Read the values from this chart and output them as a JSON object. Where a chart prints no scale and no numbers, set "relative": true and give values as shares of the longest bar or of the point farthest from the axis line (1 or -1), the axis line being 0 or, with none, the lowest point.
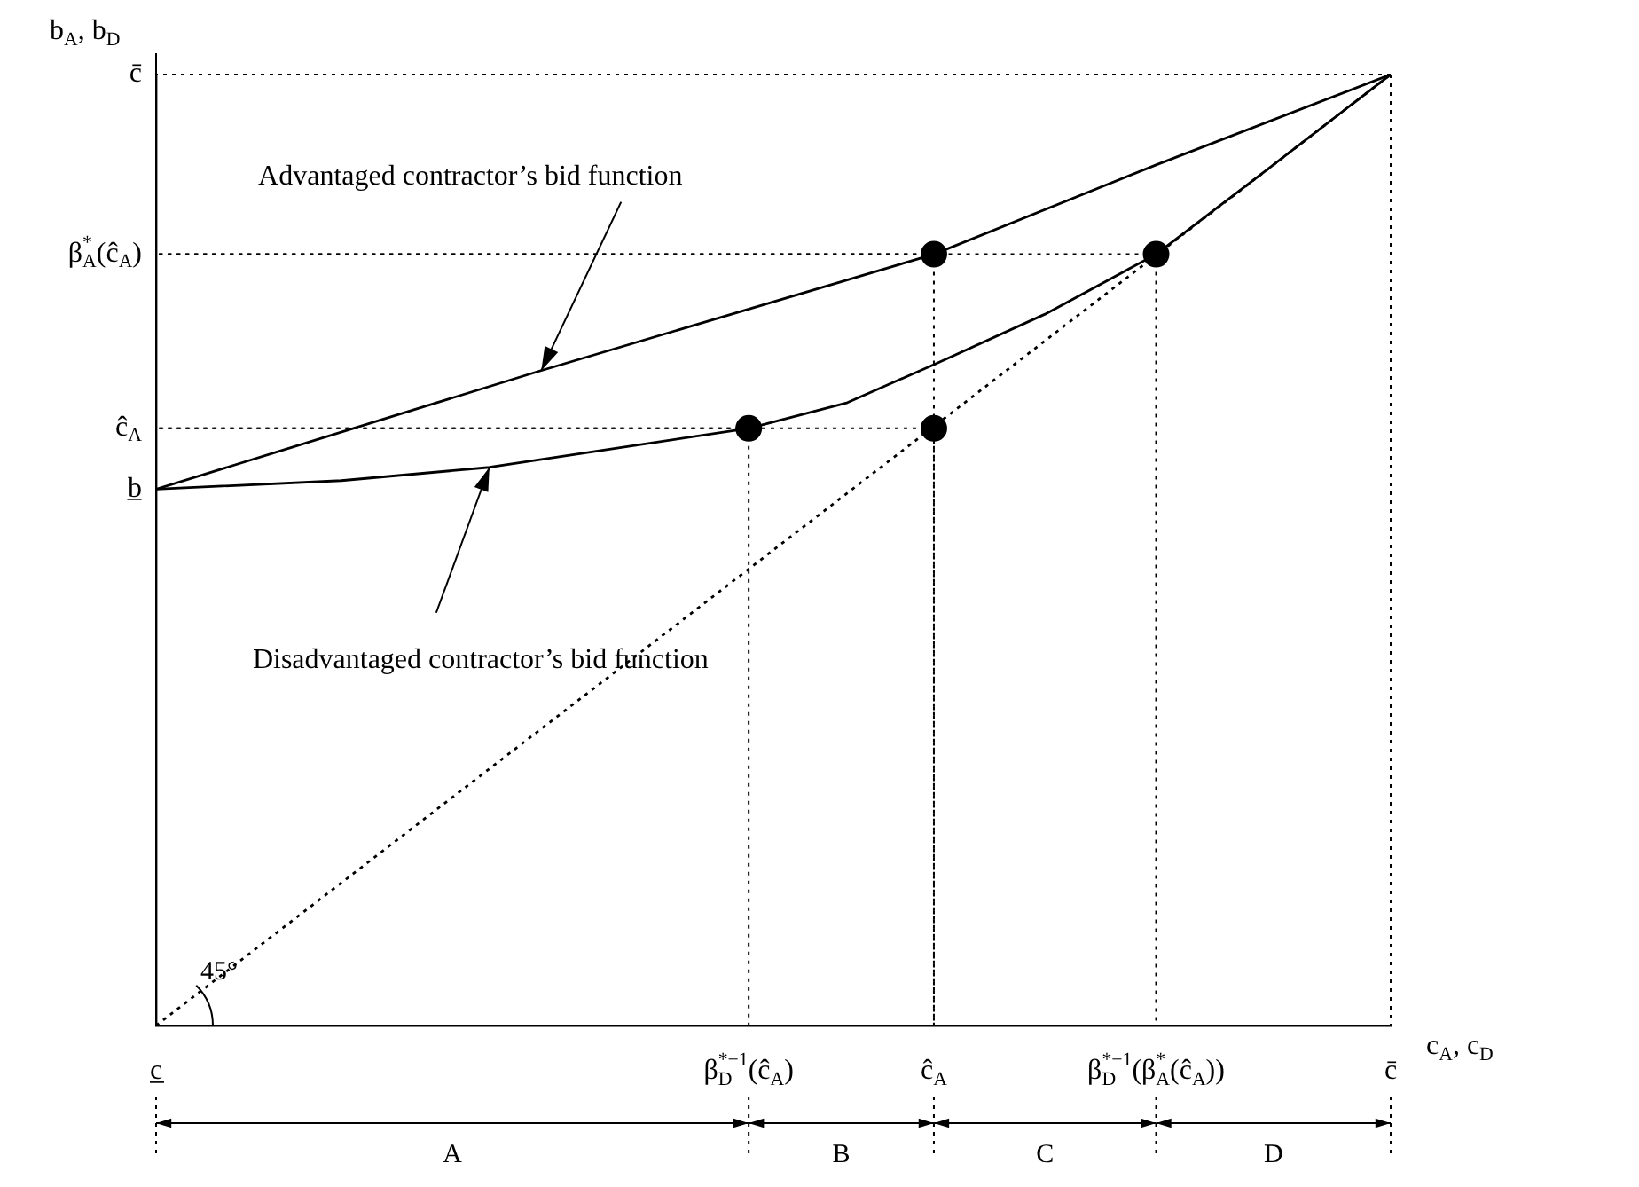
{
  "chart_data": {
    "type": "line",
    "relative": true,
    "grid": true,
    "xlabel": "c$_{A}$, c$_{D}$",
    "ylabel": "b$_{A}$, b$_{D}$",
    "categories": [
      "c̲",
      null,
      null,
      null,
      null,
      null,
      null,
      null,
      null,
      null,
      null,
      null,
      null,
      null,
      null,
      null,
      null,
      null,
      null,
      null,
      null,
      null,
      null,
      null,
      null,
      null,
      null,
      null,
      null,
      null,
      null,
      null,
      null,
      null,
      null,
      null,
      null,
      null,
      null,
      null,
      null,
      null,
      null,
      null,
      null,
      null,
      null,
      null,
      "β$^{*−1}$$_{D}$(ĉ$_{A}$)",
      null,
      null,
      null,
      null,
      null,
      null,
      null,
      null,
      null,
      null,
      null,
      null,
      null,
      null,
      "ĉ$_{A}$",
      null,
      null,
      null,
      null,
      null,
      null,
      null,
      null,
      null,
      null,
      null,
      null,
      null,
      null,
      null,
      null,
      null,
      "β$^{*−1}$$_{D}$(β$^{*}$$_{A}$(ĉ$_{A}$))",
      null,
      null,
      null,
      null,
      null,
      null,
      null,
      null,
      null,
      null,
      null,
      null,
      null,
      null,
      null,
      null,
      null,
      null,
      "c̄"
    ],
    "series": [
      {
        "color": "#000000",
        "values": [
          0.564,
          null,
          null,
          null,
          null,
          null,
          null,
          null,
          null,
          null,
          null,
          null,
          null,
          null,
          null,
          null,
          null,
          null,
          null,
          null,
          null,
          null,
          null,
          null,
          null,
          null,
          null,
          null,
          null,
          null,
          null,
          0.688,
          null,
          null,
          null,
          null,
          null,
          null,
          null,
          null,
          null,
          null,
          null,
          null,
          null,
          null,
          null,
          null,
          null,
          null,
          null,
          null,
          null,
          null,
          null,
          null,
          null,
          null,
          null,
          null,
          null,
          null,
          null,
          0.811,
          null,
          null,
          null,
          null,
          null,
          null,
          null,
          null,
          null,
          null,
          null,
          null,
          null,
          null,
          null,
          null,
          null,
          0.905,
          null,
          null,
          null,
          null,
          null,
          null,
          null,
          null,
          null,
          null,
          null,
          null,
          null,
          null,
          null,
          null,
          null,
          null,
          1
        ]
      },
      {
        "color": "#000000",
        "values": [
          0.564,
          null,
          null,
          null,
          null,
          null,
          null,
          null,
          null,
          null,
          null,
          null,
          null,
          null,
          null,
          0.573,
          null,
          null,
          null,
          null,
          null,
          null,
          null,
          null,
          null,
          null,
          null,
          0.587,
          null,
          null,
          null,
          null,
          null,
          null,
          null,
          null,
          null,
          null,
          null,
          null,
          null,
          null,
          null,
          null,
          null,
          null,
          null,
          null,
          0.628,
          null,
          null,
          null,
          null,
          null,
          null,
          null,
          0.655,
          null,
          null,
          null,
          null,
          null,
          null,
          0.695,
          null,
          null,
          null,
          null,
          null,
          null,
          null,
          null,
          0.748,
          null,
          null,
          null,
          null,
          null,
          null,
          null,
          null,
          0.811,
          null,
          null,
          null,
          null,
          null,
          null,
          null,
          null,
          0.9,
          null,
          null,
          null,
          null,
          null,
          null,
          null,
          null,
          null,
          1
        ]
      },
      {
        "color": "#000000",
        "line_style": "dotted",
        "values": [
          0,
          null,
          null,
          null,
          null,
          null,
          null,
          null,
          null,
          null,
          null,
          null,
          null,
          null,
          null,
          null,
          null,
          null,
          null,
          null,
          null,
          null,
          null,
          null,
          null,
          null,
          null,
          null,
          null,
          null,
          null,
          null,
          null,
          null,
          null,
          null,
          null,
          null,
          null,
          null,
          null,
          null,
          null,
          null,
          null,
          null,
          null,
          null,
          null,
          null,
          null,
          null,
          null,
          null,
          null,
          null,
          null,
          null,
          null,
          null,
          null,
          null,
          null,
          null,
          null,
          null,
          null,
          null,
          null,
          null,
          null,
          null,
          null,
          null,
          null,
          null,
          null,
          null,
          null,
          null,
          null,
          null,
          null,
          null,
          null,
          null,
          null,
          null,
          null,
          null,
          null,
          null,
          null,
          null,
          null,
          null,
          null,
          null,
          null,
          null,
          1
        ]
      },
      {
        "type": "scatter",
        "marker": "circle",
        "color": "#000000",
        "x": [
          "β$^{*−1}$$_{D}$(ĉ$_{A}$)",
          "ĉ$_{A}$",
          "ĉ$_{A}$",
          "β$^{*−1}$$_{D}$(β$^{*}$$_{A}$(ĉ$_{A}$))"
        ],
        "values": [
          0.628,
          0.811,
          0.628,
          0.811
        ]
      }
    ],
    "annotations": [
      "Advantaged contractor’s bid function",
      "Disadvantaged contractor’s bid function",
      "45°",
      "b̲",
      "ĉ$_{A}$",
      "β$^{*}$$_{A}$(ĉ$_{A}$)",
      "c̄",
      "A",
      "B",
      "C",
      "D"
    ]
  }
}
